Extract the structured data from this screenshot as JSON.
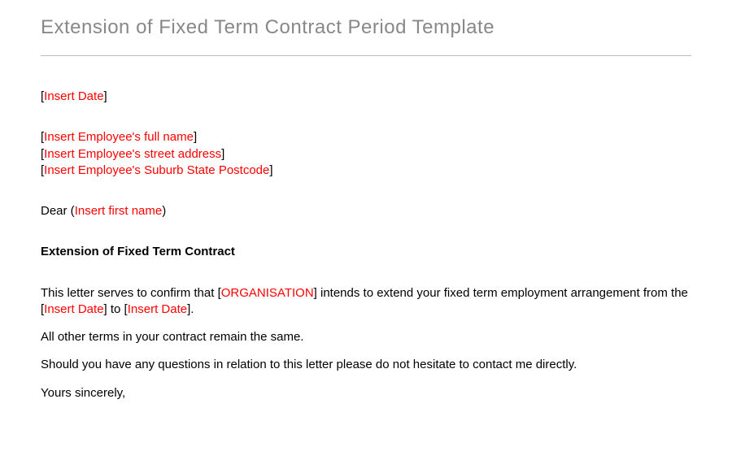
{
  "title": "Extension of Fixed Term Contract Period Template",
  "colors": {
    "title_color": "#888888",
    "placeholder_color": "#ff0000",
    "body_color": "#000000",
    "rule_color": "#bbbbbb",
    "background": "#ffffff"
  },
  "typography": {
    "title_fontsize": 24,
    "body_fontsize": 15,
    "font_family": "Arial"
  },
  "date_line": {
    "open": "[",
    "placeholder": "Insert Date",
    "close": "]"
  },
  "address": [
    {
      "open": "[",
      "placeholder": "Insert Employee's full name",
      "close": "]"
    },
    {
      "open": "[",
      "placeholder": "Insert Employee's street address",
      "close": "]"
    },
    {
      "open": "[",
      "placeholder": "Insert Employee's Suburb State Postcode",
      "close": "]"
    }
  ],
  "salutation": {
    "prefix": "Dear (",
    "placeholder": "Insert first name",
    "suffix": ")"
  },
  "subject": "Extension  of Fixed Term Contract",
  "para1": {
    "t1": "This letter serves to confirm that [",
    "ph1": "ORGANISATION",
    "t2": "]  intends to extend your fixed term employment arrangement  from the [",
    "ph2": "Insert Date",
    "t3": "] to [",
    "ph3": "Insert Date",
    "t4": "]."
  },
  "para2": "All other terms in your contract remain the same.",
  "para3": "Should you have any questions in relation to this letter please do not hesitate to contact me directly.",
  "signoff": "Yours sincerely,"
}
